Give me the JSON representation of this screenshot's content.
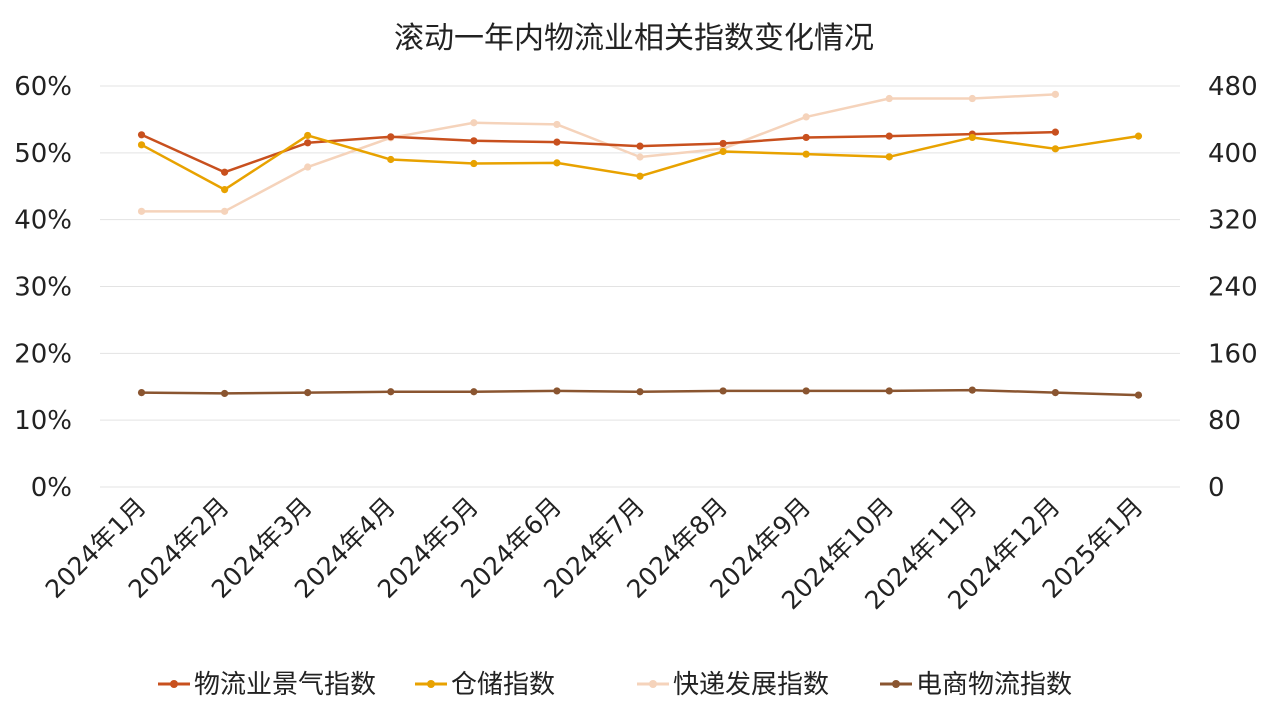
{
  "chart_data": {
    "type": "line",
    "title": "滚动一年内物流业相关指数变化情况",
    "categories": [
      "2024年1月",
      "2024年2月",
      "2024年3月",
      "2024年4月",
      "2024年5月",
      "2024年6月",
      "2024年7月",
      "2024年8月",
      "2024年9月",
      "2024年10月",
      "2024年11月",
      "2024年12月",
      "2025年1月"
    ],
    "y_left": {
      "ticks": [
        "0%",
        "10%",
        "20%",
        "30%",
        "40%",
        "50%",
        "60%"
      ],
      "range": [
        0,
        60
      ]
    },
    "y_right": {
      "ticks": [
        "0",
        "80",
        "160",
        "240",
        "320",
        "400",
        "480"
      ],
      "range": [
        0,
        480
      ]
    },
    "grid": true,
    "legend_position": "bottom",
    "series": [
      {
        "name": "物流业景气指数",
        "axis": "left",
        "color": "#c8501e",
        "values": [
          52.7,
          47.1,
          51.5,
          52.4,
          51.8,
          51.6,
          51.0,
          51.4,
          52.3,
          52.5,
          52.8,
          53.1,
          null
        ]
      },
      {
        "name": "仓储指数",
        "axis": "left",
        "color": "#e8a200",
        "values": [
          51.2,
          44.5,
          52.6,
          49.0,
          48.4,
          48.5,
          46.5,
          50.2,
          49.8,
          49.4,
          52.3,
          50.6,
          52.5
        ]
      },
      {
        "name": "快递发展指数",
        "axis": "right",
        "color": "#f5d3bb",
        "values": [
          330,
          330,
          383,
          418,
          436,
          434,
          395,
          405,
          443,
          465,
          465,
          470,
          null
        ]
      },
      {
        "name": "电商物流指数",
        "axis": "right",
        "color": "#8a5530",
        "values": [
          113,
          112,
          113,
          114,
          114,
          115,
          114,
          115,
          115,
          115,
          116,
          113,
          110
        ]
      }
    ]
  }
}
